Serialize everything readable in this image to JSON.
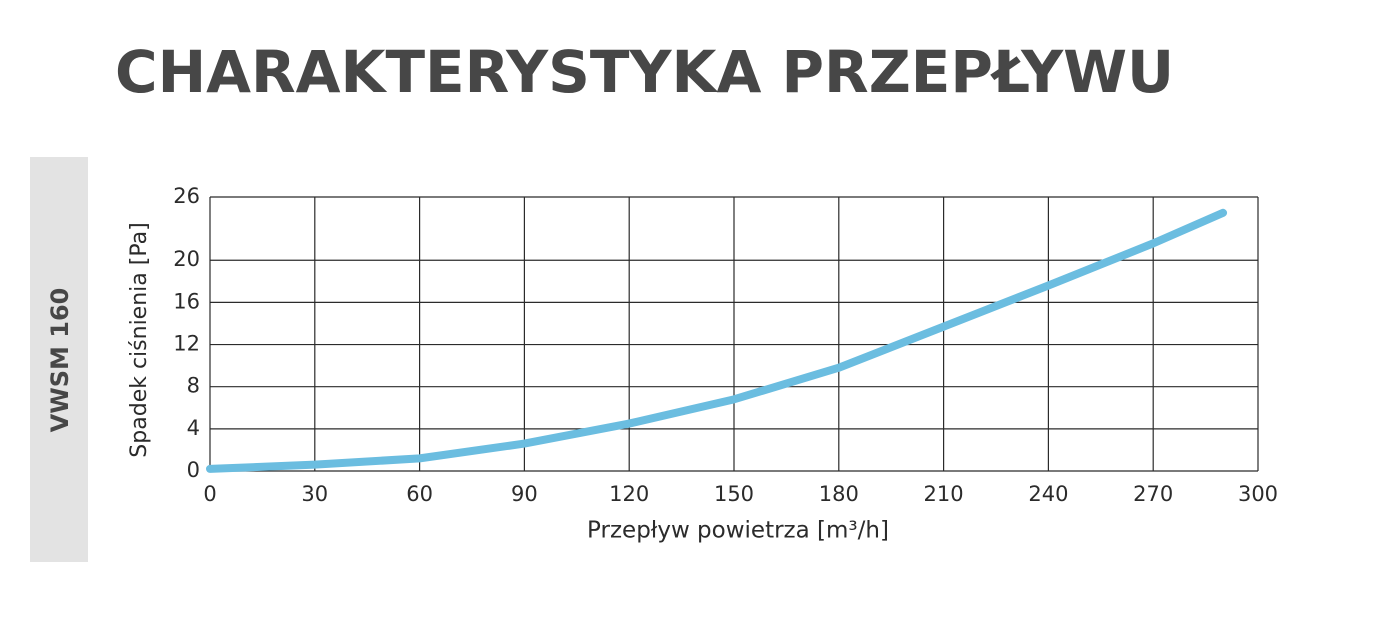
{
  "sidebar": {
    "label": "VWSM 160"
  },
  "chart_data": {
    "type": "line",
    "title": "CHARAKTERYSTYKA PRZEPŁYWU",
    "x_label": "Przepływ powietrza [m³/h]",
    "y_label": "Spadek ciśnienia [Pa]",
    "x": [
      0,
      30,
      60,
      90,
      120,
      150,
      180,
      210,
      240,
      270,
      290
    ],
    "series": [
      {
        "name": "VWSM 160",
        "color": "#6bbde0",
        "values": [
          0.2,
          0.6,
          1.2,
          2.6,
          4.5,
          6.8,
          9.8,
          13.7,
          17.6,
          21.6,
          24.5
        ]
      }
    ],
    "xlim": [
      0,
      300
    ],
    "xticks": [
      0,
      30,
      60,
      90,
      120,
      150,
      180,
      210,
      240,
      270,
      300
    ],
    "ylim": [
      0,
      26
    ],
    "yticks": [
      0,
      4,
      8,
      12,
      16,
      20,
      26
    ],
    "grid": true,
    "legend": false
  }
}
